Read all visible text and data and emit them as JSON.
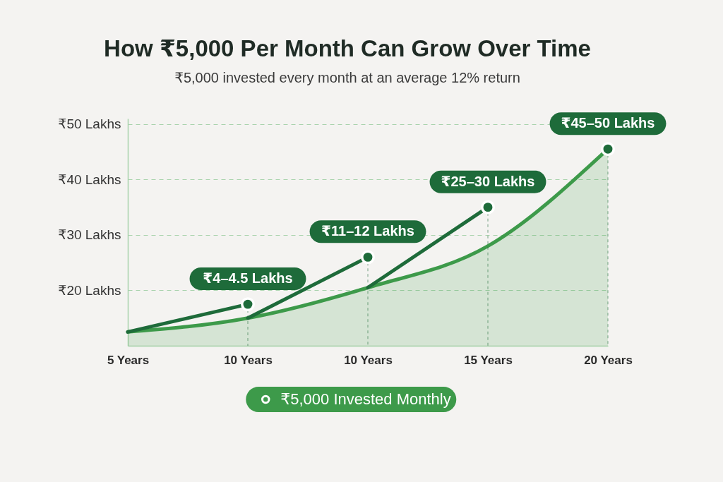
{
  "chart_data": {
    "type": "area",
    "title": "How ₹5,000 Per Month Can Grow Over Time",
    "subtitle": "₹5,000 invested every month at an average 12% return",
    "categories": [
      "5 Years",
      "10 Years",
      "10 Years",
      "15 Years",
      "20 Years"
    ],
    "series": [
      {
        "name": "₹5,000 Invested Monthly",
        "color": "#3d9a4a",
        "values": [
          12.5,
          15,
          20.5,
          28,
          45.5
        ]
      },
      {
        "type": "line",
        "color": "#1e6b3a",
        "values": [
          12.5,
          17.5,
          null,
          null,
          null
        ]
      },
      {
        "type": "line",
        "color": "#1e6b3a",
        "values": [
          null,
          15,
          26,
          null,
          null
        ]
      },
      {
        "type": "line",
        "color": "#1e6b3a",
        "values": [
          null,
          null,
          20.5,
          35,
          null
        ]
      },
      {
        "type": "lollipop",
        "color": "#1e6b3a",
        "values": [
          null,
          17.5,
          26,
          35,
          45.5
        ],
        "value_labels": [
          null,
          "₹4–4.5 Lakhs",
          "₹11–12 Lakhs",
          "₹25–30 Lakhs",
          "₹45–50 Lakhs"
        ]
      }
    ],
    "ylim": [
      10,
      51
    ],
    "yticks": [
      {
        "value": 20,
        "label": "₹20 Lakhs"
      },
      {
        "value": 30,
        "label": "₹30 Lakhs"
      },
      {
        "value": 40,
        "label": "₹40 Lakhs"
      },
      {
        "value": 50,
        "label": "₹50 Lakhs"
      }
    ],
    "grid": "y",
    "legend": "bottom"
  }
}
